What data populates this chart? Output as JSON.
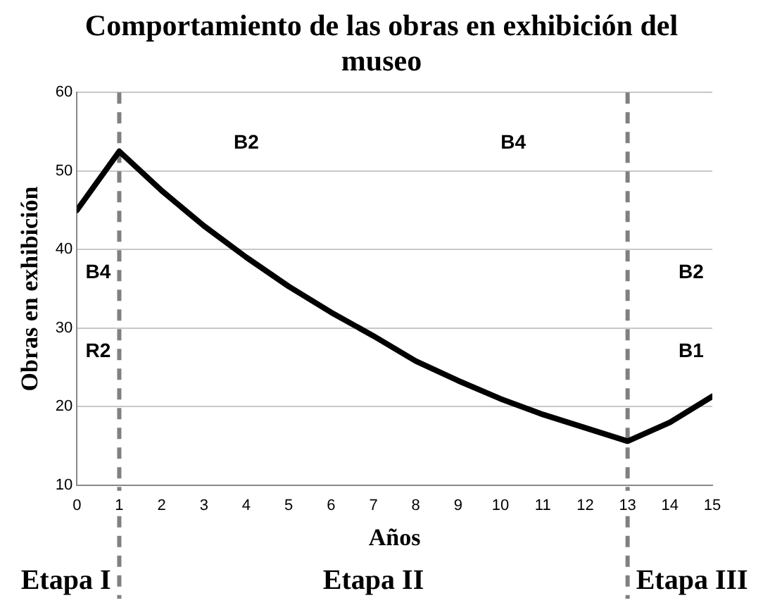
{
  "chart_data": {
    "type": "line",
    "title": "Comportamiento de las obras en exhibición del museo",
    "xlabel": "Años",
    "ylabel": "Obras en exhibición",
    "x": [
      0,
      1,
      2,
      3,
      4,
      5,
      6,
      7,
      8,
      9,
      10,
      11,
      12,
      13,
      14,
      15
    ],
    "series": [
      {
        "color": "#000000",
        "values": [
          45,
          52.5,
          47.5,
          43,
          39,
          35.3,
          32,
          29,
          25.8,
          23.3,
          21,
          19,
          17.3,
          15.6,
          18,
          21.3
        ]
      }
    ],
    "xlim": [
      0,
      15
    ],
    "xticks": [
      0,
      1,
      2,
      3,
      4,
      5,
      6,
      7,
      8,
      9,
      10,
      11,
      12,
      13,
      14,
      15
    ],
    "ylim": [
      10,
      60
    ],
    "yticks": [
      10,
      20,
      30,
      40,
      50,
      60
    ],
    "grid": "y",
    "legend": false,
    "marker": "none",
    "line_style": "solid",
    "ref_lines": [
      {
        "axis": "x",
        "value": 1,
        "color": "#808080",
        "line_style": "dashed"
      },
      {
        "axis": "x",
        "value": 13,
        "color": "#808080",
        "line_style": "dashed"
      }
    ],
    "annotations": [
      "B4",
      "R2",
      "B2",
      "B4",
      "B2",
      "B1",
      "Etapa I",
      "Etapa II",
      "Etapa III"
    ]
  }
}
